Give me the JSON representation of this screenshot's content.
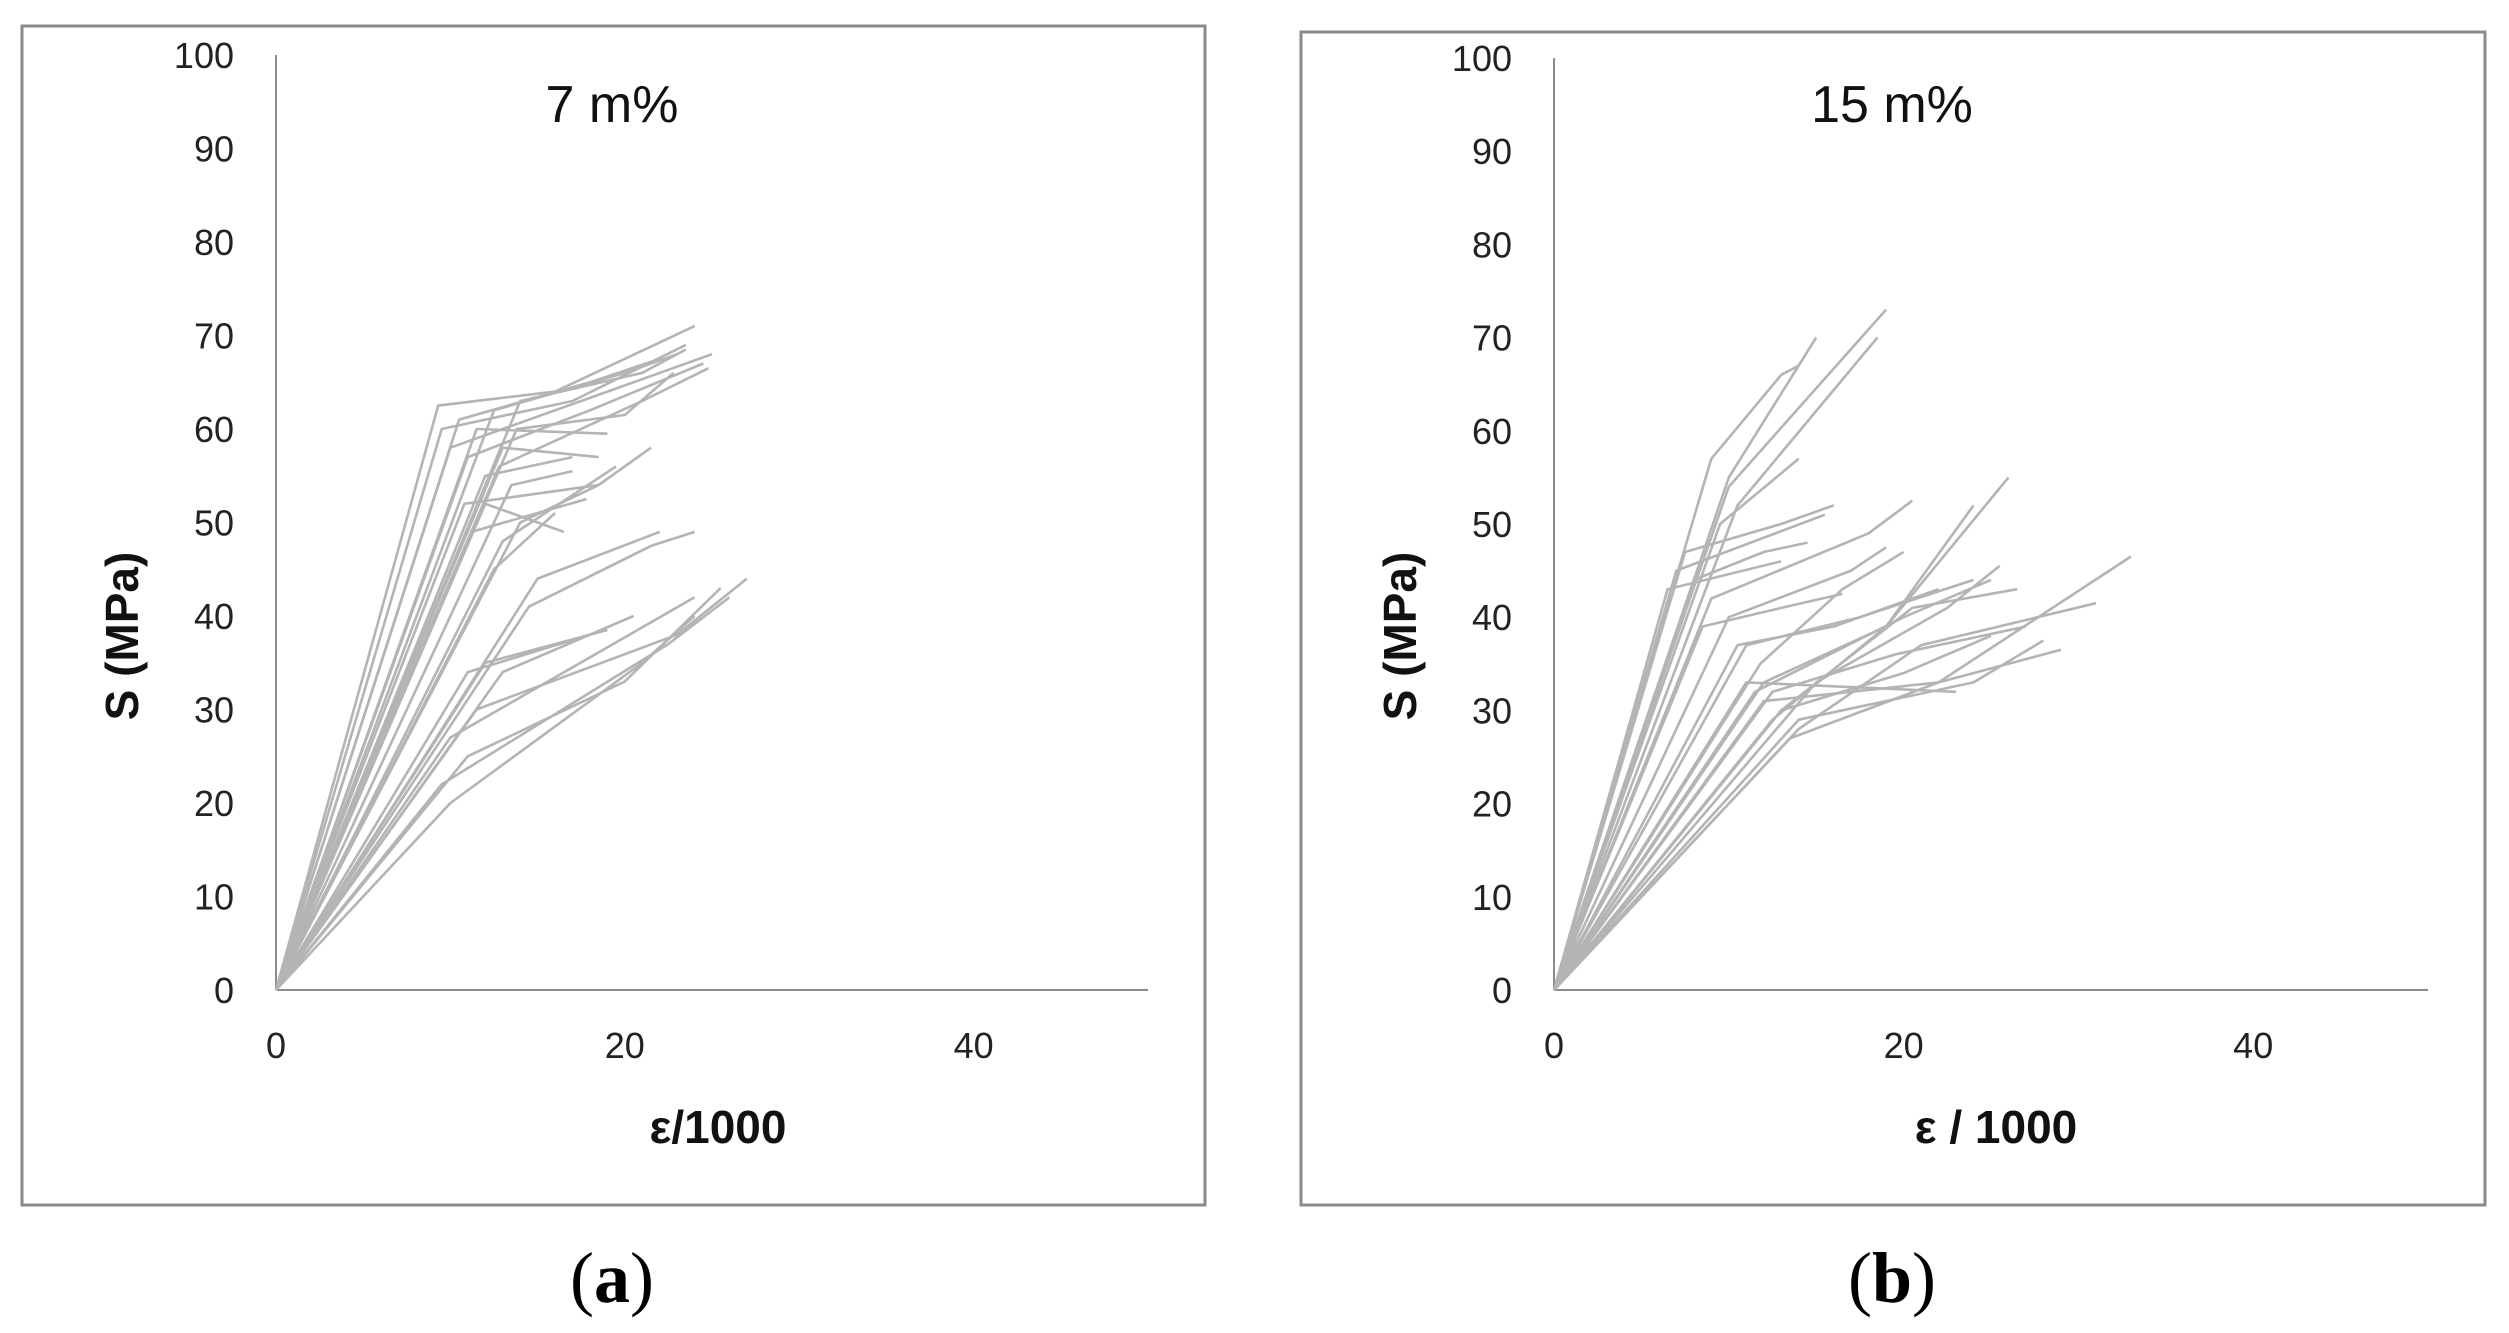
{
  "chart_data": [
    {
      "type": "line",
      "panel_caption": "(a)",
      "caption_open": "(",
      "caption_letter": "a",
      "caption_close": ")",
      "title": "7 m%",
      "xlabel": "ε/1000",
      "ylabel": "S (MPa)",
      "xlim": [
        0,
        50
      ],
      "ylim": [
        0,
        100
      ],
      "xticks": [
        0,
        20,
        40
      ],
      "yticks": [
        0,
        10,
        20,
        30,
        40,
        50,
        60,
        70,
        80,
        90,
        100
      ],
      "grid": false,
      "legend": "none",
      "line_color": "#b4b4b4",
      "series": [
        {
          "name": "s1",
          "points": [
            [
              0,
              0
            ],
            [
              9.3,
              62.5
            ],
            [
              16,
              64
            ],
            [
              24,
              71
            ]
          ]
        },
        {
          "name": "s2",
          "points": [
            [
              0,
              0
            ],
            [
              9.5,
              60
            ],
            [
              17,
              63
            ],
            [
              23.5,
              69
            ]
          ]
        },
        {
          "name": "s3",
          "points": [
            [
              0,
              0
            ],
            [
              10,
              58
            ],
            [
              19,
              64
            ],
            [
              25,
              68
            ]
          ]
        },
        {
          "name": "s4",
          "points": [
            [
              0,
              0
            ],
            [
              10.5,
              61
            ],
            [
              18,
              65
            ],
            [
              22,
              67.5
            ]
          ]
        },
        {
          "name": "s5",
          "points": [
            [
              0,
              0
            ],
            [
              11,
              57
            ],
            [
              18,
              62
            ],
            [
              24.5,
              67
            ]
          ]
        },
        {
          "name": "s6",
          "points": [
            [
              0,
              0
            ],
            [
              11.5,
              60
            ],
            [
              19,
              59.5
            ]
          ]
        },
        {
          "name": "s7",
          "points": [
            [
              0,
              0
            ],
            [
              12,
              55
            ],
            [
              17,
              57
            ]
          ]
        },
        {
          "name": "s8",
          "points": [
            [
              0,
              0
            ],
            [
              12,
              52
            ],
            [
              16.5,
              49
            ]
          ]
        },
        {
          "name": "s9",
          "points": [
            [
              0,
              0
            ],
            [
              12.5,
              62
            ],
            [
              20,
              66
            ],
            [
              23,
              68
            ]
          ]
        },
        {
          "name": "s10",
          "points": [
            [
              0,
              0
            ],
            [
              13,
              58
            ],
            [
              18.5,
              57
            ]
          ]
        },
        {
          "name": "s11",
          "points": [
            [
              0,
              0
            ],
            [
              13.5,
              54
            ],
            [
              17,
              55.5
            ]
          ]
        },
        {
          "name": "s12",
          "points": [
            [
              0,
              0
            ],
            [
              13,
              48
            ],
            [
              19.5,
              56
            ]
          ]
        },
        {
          "name": "s13",
          "points": [
            [
              0,
              0
            ],
            [
              14,
              50
            ],
            [
              18.5,
              54
            ]
          ]
        },
        {
          "name": "s14",
          "points": [
            [
              0,
              0
            ],
            [
              14,
              63
            ],
            [
              21,
              66
            ],
            [
              23.5,
              68.5
            ]
          ]
        },
        {
          "name": "s15",
          "points": [
            [
              0,
              0
            ],
            [
              12.5,
              45
            ],
            [
              16,
              51
            ]
          ]
        },
        {
          "name": "s16",
          "points": [
            [
              0,
              0
            ],
            [
              15,
              44
            ],
            [
              22,
              49
            ]
          ]
        },
        {
          "name": "s17",
          "points": [
            [
              0,
              0
            ],
            [
              14.5,
              41
            ],
            [
              21.5,
              47.5
            ],
            [
              24,
              49
            ]
          ]
        },
        {
          "name": "s18",
          "points": [
            [
              0,
              0
            ],
            [
              11,
              34
            ],
            [
              18,
              38
            ]
          ]
        },
        {
          "name": "s19",
          "points": [
            [
              0,
              0
            ],
            [
              12,
              35
            ],
            [
              19,
              38.5
            ]
          ]
        },
        {
          "name": "s20",
          "points": [
            [
              0,
              0
            ],
            [
              13,
              34
            ],
            [
              20.5,
              40
            ]
          ]
        },
        {
          "name": "s21",
          "points": [
            [
              0,
              0
            ],
            [
              11.5,
              30
            ],
            [
              23,
              38
            ],
            [
              27,
              44
            ]
          ]
        },
        {
          "name": "s22",
          "points": [
            [
              0,
              0
            ],
            [
              10,
              27
            ],
            [
              24,
              42
            ]
          ]
        },
        {
          "name": "s23",
          "points": [
            [
              0,
              0
            ],
            [
              9.5,
              22
            ],
            [
              22.5,
              37
            ],
            [
              26,
              42
            ]
          ]
        },
        {
          "name": "s24",
          "points": [
            [
              0,
              0
            ],
            [
              10,
              20
            ],
            [
              21,
              35
            ],
            [
              24,
              40
            ]
          ]
        },
        {
          "name": "s25",
          "points": [
            [
              0,
              0
            ],
            [
              11,
              25
            ],
            [
              20,
              33
            ],
            [
              25.5,
              43
            ]
          ]
        },
        {
          "name": "s26",
          "points": [
            [
              0,
              0
            ],
            [
              10.8,
              52
            ],
            [
              18.5,
              54
            ],
            [
              21.5,
              58
            ]
          ]
        },
        {
          "name": "s27",
          "points": [
            [
              0,
              0
            ],
            [
              11.2,
              49
            ],
            [
              17.8,
              52.5
            ]
          ]
        },
        {
          "name": "s28",
          "points": [
            [
              0,
              0
            ],
            [
              12.8,
              56
            ],
            [
              21,
              63
            ],
            [
              24.8,
              66.5
            ]
          ]
        },
        {
          "name": "s29",
          "points": [
            [
              0,
              0
            ],
            [
              13.8,
              60
            ],
            [
              20,
              61.5
            ],
            [
              22.8,
              66
            ]
          ]
        }
      ]
    },
    {
      "type": "line",
      "panel_caption": "(b)",
      "caption_open": "(",
      "caption_letter": "b",
      "caption_close": ")",
      "title": "15 m%",
      "xlabel": "ε / 1000",
      "ylabel": "S (MPa)",
      "xlim": [
        0,
        50
      ],
      "ylim": [
        0,
        100
      ],
      "xticks": [
        0,
        20,
        40
      ],
      "yticks": [
        0,
        10,
        20,
        30,
        40,
        50,
        60,
        70,
        80,
        90,
        100
      ],
      "grid": false,
      "legend": "none",
      "line_color": "#b4b4b4",
      "series": [
        {
          "name": "s1",
          "points": [
            [
              0,
              0
            ],
            [
              9,
              57
            ],
            [
              13,
              66
            ],
            [
              14,
              67
            ]
          ]
        },
        {
          "name": "s2",
          "points": [
            [
              0,
              0
            ],
            [
              10,
              55
            ],
            [
              15,
              70
            ]
          ]
        },
        {
          "name": "s3",
          "points": [
            [
              0,
              0
            ],
            [
              10,
              54
            ],
            [
              19,
              73
            ]
          ]
        },
        {
          "name": "s4",
          "points": [
            [
              0,
              0
            ],
            [
              9.5,
              50
            ],
            [
              14,
              57
            ]
          ]
        },
        {
          "name": "s5",
          "points": [
            [
              0,
              0
            ],
            [
              10.5,
              52
            ],
            [
              18.5,
              70
            ]
          ]
        },
        {
          "name": "s6",
          "points": [
            [
              0,
              0
            ],
            [
              7.5,
              47
            ],
            [
              13,
              50
            ],
            [
              16,
              52
            ]
          ]
        },
        {
          "name": "s7",
          "points": [
            [
              0,
              0
            ],
            [
              7,
              45
            ],
            [
              15.5,
              51
            ]
          ]
        },
        {
          "name": "s8",
          "points": [
            [
              0,
              0
            ],
            [
              6.5,
              43
            ],
            [
              13,
              46
            ]
          ]
        },
        {
          "name": "s9",
          "points": [
            [
              0,
              0
            ],
            [
              8,
              44
            ],
            [
              12,
              47
            ],
            [
              14.5,
              48
            ]
          ]
        },
        {
          "name": "s10",
          "points": [
            [
              0,
              0
            ],
            [
              9,
              42
            ],
            [
              18,
              49
            ],
            [
              20.5,
              52.5
            ]
          ]
        },
        {
          "name": "s11",
          "points": [
            [
              0,
              0
            ],
            [
              8.5,
              39
            ],
            [
              13,
              41
            ],
            [
              16.5,
              42.5
            ]
          ]
        },
        {
          "name": "s12",
          "points": [
            [
              0,
              0
            ],
            [
              10,
              40
            ],
            [
              17,
              45
            ],
            [
              19,
              47.5
            ]
          ]
        },
        {
          "name": "s13",
          "points": [
            [
              0,
              0
            ],
            [
              11,
              37
            ],
            [
              17.5,
              40
            ],
            [
              24,
              44
            ]
          ]
        },
        {
          "name": "s14",
          "points": [
            [
              0,
              0
            ],
            [
              10.5,
              37
            ],
            [
              16,
              39
            ],
            [
              22,
              43
            ]
          ]
        },
        {
          "name": "s15",
          "points": [
            [
              0,
              0
            ],
            [
              12,
              33
            ],
            [
              19,
              39
            ],
            [
              26,
              55
            ]
          ]
        },
        {
          "name": "s16",
          "points": [
            [
              0,
              0
            ],
            [
              11.5,
              32
            ],
            [
              20,
              40
            ],
            [
              25,
              44
            ]
          ]
        },
        {
          "name": "s17",
          "points": [
            [
              0,
              0
            ],
            [
              13,
              30
            ],
            [
              20.5,
              41
            ],
            [
              26.5,
              43
            ]
          ]
        },
        {
          "name": "s18",
          "points": [
            [
              0,
              0
            ],
            [
              12.5,
              29
            ],
            [
              19,
              39
            ],
            [
              24,
              52
            ]
          ]
        },
        {
          "name": "s19",
          "points": [
            [
              0,
              0
            ],
            [
              14,
              28
            ],
            [
              21,
              37
            ],
            [
              31,
              41.5
            ]
          ]
        },
        {
          "name": "s20",
          "points": [
            [
              0,
              0
            ],
            [
              13.5,
              27
            ],
            [
              22,
              33
            ],
            [
              33,
              46.5
            ]
          ]
        },
        {
          "name": "s21",
          "points": [
            [
              0,
              0
            ],
            [
              12,
              31
            ],
            [
              22,
              33
            ],
            [
              29,
              36.5
            ]
          ]
        },
        {
          "name": "s22",
          "points": [
            [
              0,
              0
            ],
            [
              11,
              33
            ],
            [
              23,
              32
            ]
          ]
        },
        {
          "name": "s23",
          "points": [
            [
              0,
              0
            ],
            [
              13,
              30
            ],
            [
              20,
              34
            ],
            [
              25,
              38
            ]
          ]
        },
        {
          "name": "s24",
          "points": [
            [
              0,
              0
            ],
            [
              14,
              29
            ],
            [
              24,
              33
            ],
            [
              28,
              37.5
            ]
          ]
        },
        {
          "name": "s25",
          "points": [
            [
              0,
              0
            ],
            [
              12.5,
              32
            ],
            [
              19.5,
              36
            ],
            [
              27,
              39
            ]
          ]
        },
        {
          "name": "s26",
          "points": [
            [
              0,
              0
            ],
            [
              15,
              33
            ],
            [
              22.5,
              41
            ],
            [
              25.5,
              45.5
            ]
          ]
        },
        {
          "name": "s27",
          "points": [
            [
              0,
              0
            ],
            [
              11.8,
              35
            ],
            [
              16.5,
              43
            ],
            [
              20,
              47
            ]
          ]
        }
      ]
    }
  ]
}
